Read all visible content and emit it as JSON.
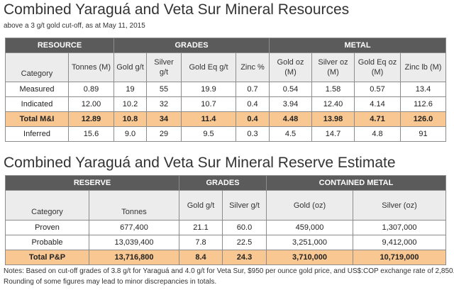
{
  "resources": {
    "title": "Combined Yaraguá and Veta Sur Mineral Resources",
    "subtitle": "above a 3 g/t gold cut-off, as at May 11, 2015",
    "groups": [
      "RESOURCE",
      "GRADES",
      "METAL"
    ],
    "headers": [
      "Category",
      "Tonnes (M)",
      "Gold g/t",
      "Silver g/t",
      "Gold Eq g/t",
      "Zinc %",
      "Gold oz (M)",
      "Silver oz (M)",
      "Gold Eq oz (M)",
      "Zinc lb (M)"
    ],
    "rows": [
      [
        "Measured",
        "0.89",
        "19",
        "55",
        "19.9",
        "0.7",
        "0.54",
        "1.58",
        "0.57",
        "13.4"
      ],
      [
        "Indicated",
        "12.00",
        "10.2",
        "32",
        "10.7",
        "0.4",
        "3.94",
        "12.40",
        "4.14",
        "112.6"
      ],
      [
        "Total M&I",
        "12.89",
        "10.8",
        "34",
        "11.4",
        "0.4",
        "4.48",
        "13.98",
        "4.71",
        "126.0"
      ],
      [
        "Inferred",
        "15.6",
        "9.0",
        "29",
        "9.5",
        "0.3",
        "4.5",
        "14.7",
        "4.8",
        "91"
      ]
    ]
  },
  "reserves": {
    "title": "Combined Yaraguá and Veta Sur Mineral Reserve Estimate",
    "groups": [
      "RESERVE",
      "GRADES",
      "CONTAINED METAL"
    ],
    "headers": [
      "Category",
      "Tonnes",
      "Gold g/t",
      "Silver g/t",
      "Gold (oz)",
      "Silver (oz)"
    ],
    "rows": [
      [
        "Proven",
        "677,400",
        "21.1",
        "60.0",
        "459,000",
        "1,307,000"
      ],
      [
        "Probable",
        "13,039,400",
        "7.8",
        "22.5",
        "3,251,000",
        "9,412,000"
      ],
      [
        "Total P&P",
        "13,716,800",
        "8.4",
        "24.3",
        "3,710,000",
        "10,719,000"
      ]
    ]
  },
  "notes": [
    "Notes: Based on cut-off grades of 3.8 g/t for Yaraguá and 4.0 g/t for Veta Sur, $950 per ounce gold price, and US$:COP exchange rate of 2,850.",
    "Rounding of some figures may lead to minor discrepancies in totals."
  ]
}
